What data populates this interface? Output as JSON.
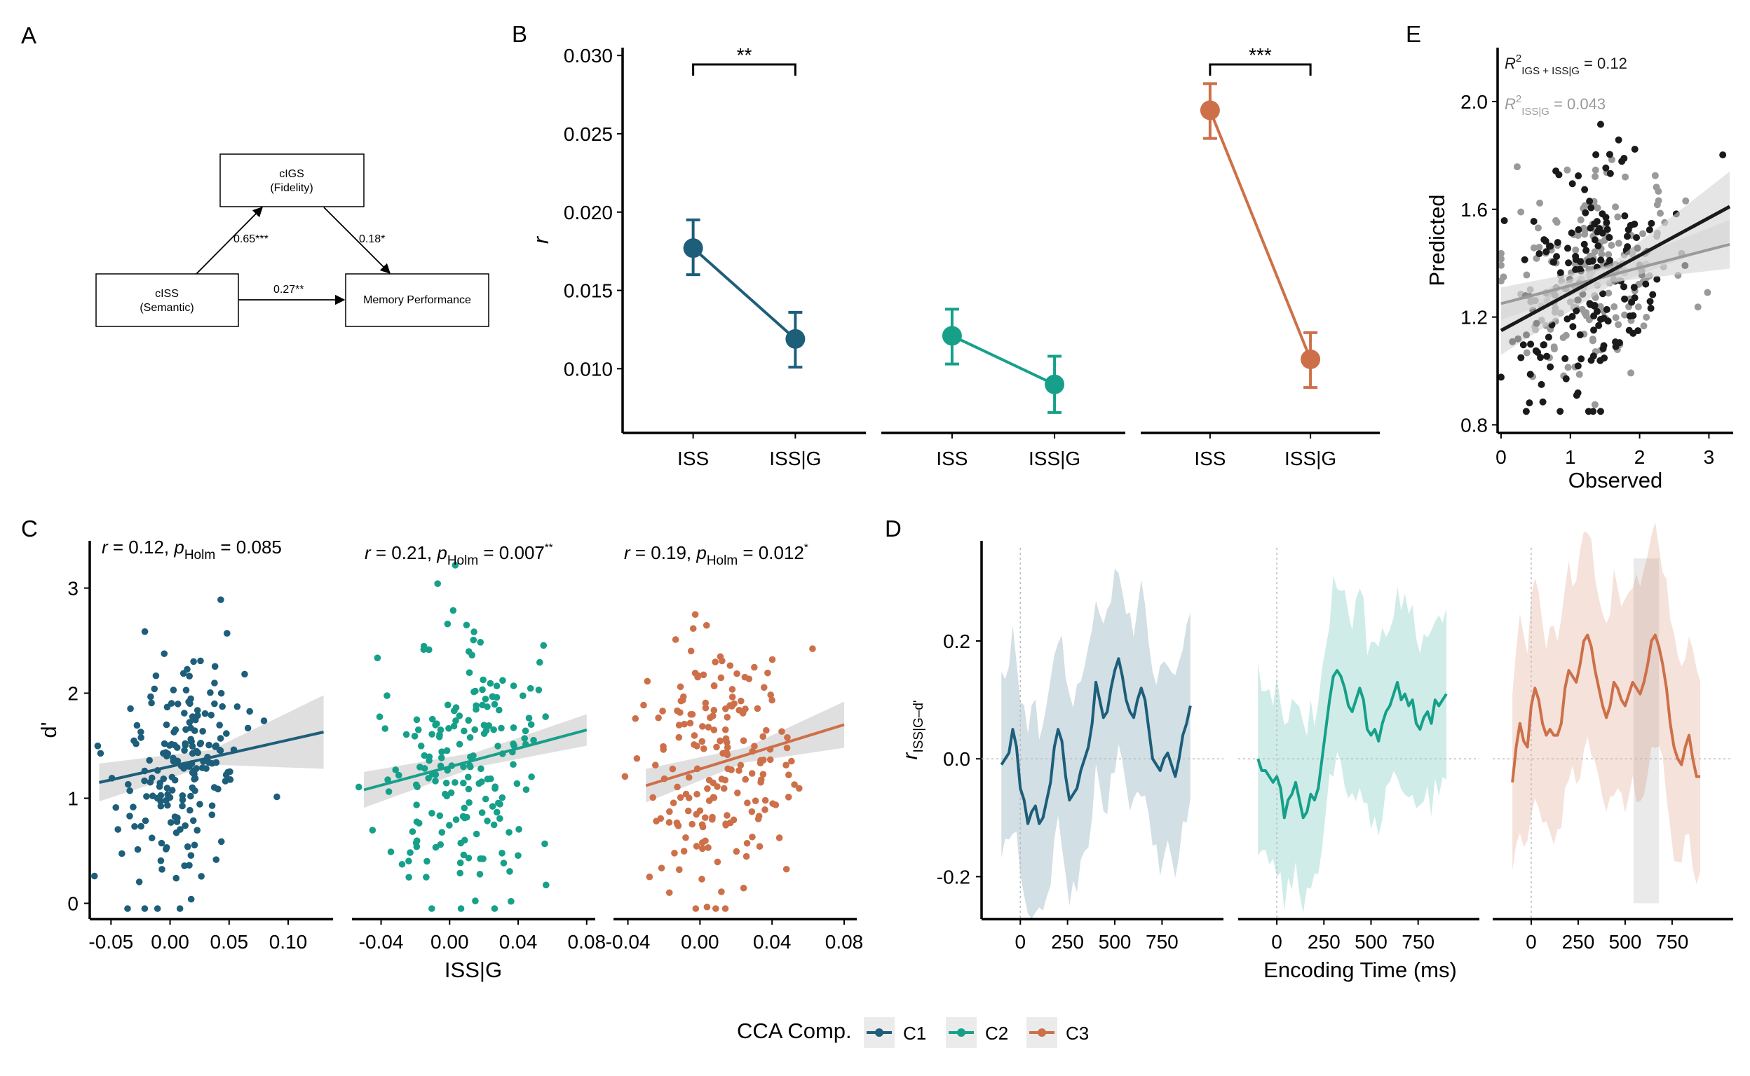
{
  "colors": {
    "C1": "#1d5e7a",
    "C2": "#16a08a",
    "C3": "#cd7049",
    "black": "#1a1a1a",
    "gray": "#9a9a9a",
    "band": "#d4d4d4"
  },
  "panelA": {
    "label": "A",
    "nodes": {
      "cigs": {
        "line1": "cIGS",
        "line2": "(Fidelity)"
      },
      "ciss": {
        "line1": "cISS",
        "line2": "(Semantic)"
      },
      "mem": {
        "line1": "Memory Performance"
      }
    },
    "paths": {
      "a": "0.65***",
      "b": "0.18*",
      "c": "0.27**"
    }
  },
  "chart_data": [
    {
      "id": "B",
      "label": "B",
      "type": "line",
      "ylabel": "r",
      "ylim": [
        0.0059,
        0.0305
      ],
      "yticks": [
        0.01,
        0.015,
        0.02,
        0.025,
        0.03
      ],
      "ytick_labels": [
        "0.010",
        "0.015",
        "0.020",
        "0.025",
        "0.030"
      ],
      "categories": [
        "ISS",
        "ISS|G"
      ],
      "facets": [
        {
          "series": "C1",
          "values": [
            0.0177,
            0.0119
          ],
          "lower": [
            0.016,
            0.0101
          ],
          "upper": [
            0.0195,
            0.0136
          ],
          "bracket": "**"
        },
        {
          "series": "C2",
          "values": [
            0.0121,
            0.009
          ],
          "lower": [
            0.0103,
            0.0072
          ],
          "upper": [
            0.0138,
            0.0108
          ],
          "bracket": ""
        },
        {
          "series": "C3",
          "values": [
            0.0265,
            0.0106
          ],
          "lower": [
            0.0247,
            0.0088
          ],
          "upper": [
            0.0282,
            0.0123
          ],
          "bracket": "***"
        }
      ]
    },
    {
      "id": "E",
      "label": "E",
      "type": "scatter",
      "xlabel": "Observed",
      "ylabel": "Predicted",
      "xlim": [
        -0.05,
        3.35
      ],
      "ylim": [
        0.77,
        2.2
      ],
      "xticks": [
        0,
        1,
        2,
        3
      ],
      "xtick_labels": [
        "0",
        "1",
        "2",
        "3"
      ],
      "yticks": [
        0.8,
        1.2,
        1.6,
        2.0
      ],
      "ytick_labels": [
        "0.8",
        "1.2",
        "1.6",
        "2.0"
      ],
      "annotations": [
        {
          "text": "R",
          "sup": "2",
          "sub": "IGS + ISS|G",
          "value": " = 0.12",
          "series": "black"
        },
        {
          "text": "R",
          "sup": "2",
          "sub": "ISS|G",
          "value": " = 0.043",
          "series": "gray"
        }
      ],
      "fits": [
        {
          "series": "black",
          "x": [
            0,
            3.3
          ],
          "y": [
            1.15,
            1.61
          ],
          "band_lo": [
            [
              0,
              1.06
            ],
            [
              1.6,
              1.32
            ],
            [
              3.3,
              1.48
            ]
          ],
          "band_hi": [
            [
              0,
              1.24
            ],
            [
              1.6,
              1.4
            ],
            [
              3.3,
              1.74
            ]
          ]
        },
        {
          "series": "gray",
          "x": [
            0,
            3.3
          ],
          "y": [
            1.25,
            1.47
          ],
          "band_lo": [
            [
              0,
              1.19
            ],
            [
              1.6,
              1.33
            ],
            [
              3.3,
              1.38
            ]
          ],
          "band_hi": [
            [
              0,
              1.31
            ],
            [
              1.6,
              1.39
            ],
            [
              3.3,
              1.56
            ]
          ]
        }
      ],
      "points_summary": {
        "n_per_series": 180,
        "x_mean": 1.3,
        "x_sd": 0.6,
        "y_mean": 1.36
      }
    },
    {
      "id": "C",
      "label": "C",
      "type": "scatter",
      "ylabel": "d'",
      "xlabel": "ISS|G",
      "ylim": [
        -0.15,
        3.45
      ],
      "yticks": [
        0,
        1,
        2,
        3
      ],
      "ytick_labels": [
        "0",
        "1",
        "2",
        "3"
      ],
      "facets": [
        {
          "series": "C1",
          "xlim": [
            -0.068,
            0.138
          ],
          "xticks": [
            -0.05,
            0.0,
            0.05,
            0.1
          ],
          "xtick_labels": [
            "-0.05",
            "0.00",
            "0.05",
            "0.10"
          ],
          "stat": {
            "r": "r",
            "rval": " = 0.12, ",
            "p": "p",
            "psub": "Holm",
            "pval": " = 0.085",
            "star": ""
          },
          "fit": {
            "x": [
              -0.06,
              0.13
            ],
            "y": [
              1.15,
              1.63
            ]
          },
          "band_halfwidth": [
            0.18,
            0.07,
            0.35
          ],
          "points_summary": {
            "n": 190,
            "x_mean": 0.01,
            "x_sd": 0.025,
            "y_mean": 1.3,
            "y_sd": 0.6
          }
        },
        {
          "series": "C2",
          "xlim": [
            -0.057,
            0.085
          ],
          "xticks": [
            -0.04,
            0.0,
            0.04,
            0.08
          ],
          "xtick_labels": [
            "-0.04",
            "0.00",
            "0.04",
            "0.08"
          ],
          "stat": {
            "r": "r",
            "rval": " = 0.21, ",
            "p": "p",
            "psub": "Holm",
            "pval": " = 0.007",
            "star": "**"
          },
          "fit": {
            "x": [
              -0.05,
              0.08
            ],
            "y": [
              1.08,
              1.65
            ]
          },
          "band_halfwidth": [
            0.17,
            0.07,
            0.15
          ],
          "points_summary": {
            "n": 190,
            "x_mean": 0.01,
            "x_sd": 0.022,
            "y_mean": 1.3,
            "y_sd": 0.6
          }
        },
        {
          "series": "C3",
          "xlim": [
            -0.048,
            0.087
          ],
          "xticks": [
            -0.04,
            0.0,
            0.04,
            0.08
          ],
          "xtick_labels": [
            "-0.04",
            "0.00",
            "0.04",
            "0.08"
          ],
          "stat": {
            "r": "r",
            "rval": " = 0.19, ",
            "p": "p",
            "psub": "Holm",
            "pval": " = 0.012",
            "star": "*"
          },
          "fit": {
            "x": [
              -0.03,
              0.08
            ],
            "y": [
              1.12,
              1.7
            ]
          },
          "band_halfwidth": [
            0.16,
            0.07,
            0.22
          ],
          "points_summary": {
            "n": 190,
            "x_mean": 0.01,
            "x_sd": 0.02,
            "y_mean": 1.3,
            "y_sd": 0.6
          }
        }
      ]
    },
    {
      "id": "D",
      "label": "D",
      "type": "line",
      "xlabel": "Encoding Time (ms)",
      "ylabel": "r",
      "ylabel_sub": "ISS|G–d'",
      "xlim": [
        -205,
        1075
      ],
      "ylim": [
        -0.272,
        0.37
      ],
      "xticks": [
        0,
        250,
        500,
        750
      ],
      "xtick_labels": [
        "0",
        "250",
        "500",
        "750"
      ],
      "yticks": [
        -0.2,
        0.0,
        0.2
      ],
      "ytick_labels": [
        "-0.2",
        "0.0",
        "0.2"
      ],
      "facets": [
        {
          "series": "C1",
          "t": [
            -100,
            -80,
            -60,
            -40,
            -20,
            0,
            20,
            40,
            60,
            80,
            100,
            120,
            140,
            160,
            180,
            200,
            220,
            240,
            260,
            280,
            300,
            320,
            340,
            360,
            380,
            400,
            420,
            440,
            460,
            480,
            500,
            520,
            540,
            560,
            580,
            600,
            620,
            640,
            660,
            680,
            700,
            720,
            740,
            760,
            780,
            800,
            820,
            840,
            860,
            880,
            900
          ],
          "r": [
            -0.01,
            0.0,
            0.01,
            0.05,
            0.02,
            -0.05,
            -0.07,
            -0.11,
            -0.09,
            -0.08,
            -0.11,
            -0.1,
            -0.07,
            -0.04,
            0.02,
            0.05,
            0.03,
            -0.03,
            -0.07,
            -0.06,
            -0.05,
            -0.02,
            0.0,
            0.02,
            0.06,
            0.13,
            0.1,
            0.07,
            0.08,
            0.12,
            0.15,
            0.17,
            0.14,
            0.1,
            0.08,
            0.07,
            0.1,
            0.12,
            0.1,
            0.05,
            0.0,
            -0.01,
            -0.02,
            0.0,
            0.01,
            -0.01,
            -0.03,
            0.0,
            0.04,
            0.06,
            0.09
          ],
          "band": 0.16
        },
        {
          "series": "C2",
          "t": [
            -100,
            -80,
            -60,
            -40,
            -20,
            0,
            20,
            40,
            60,
            80,
            100,
            120,
            140,
            160,
            180,
            200,
            220,
            240,
            260,
            280,
            300,
            320,
            340,
            360,
            380,
            400,
            420,
            440,
            460,
            480,
            500,
            520,
            540,
            560,
            580,
            600,
            620,
            640,
            660,
            680,
            700,
            720,
            740,
            760,
            780,
            800,
            820,
            840,
            860,
            880,
            900
          ],
          "r": [
            0.0,
            -0.02,
            -0.02,
            -0.03,
            -0.04,
            -0.03,
            -0.05,
            -0.1,
            -0.07,
            -0.06,
            -0.04,
            -0.07,
            -0.1,
            -0.09,
            -0.06,
            -0.07,
            -0.05,
            0.0,
            0.05,
            0.1,
            0.14,
            0.15,
            0.14,
            0.12,
            0.09,
            0.08,
            0.1,
            0.12,
            0.1,
            0.05,
            0.04,
            0.05,
            0.03,
            0.06,
            0.08,
            0.09,
            0.11,
            0.13,
            0.1,
            0.11,
            0.09,
            0.1,
            0.06,
            0.05,
            0.07,
            0.08,
            0.06,
            0.1,
            0.09,
            0.1,
            0.11
          ],
          "band": 0.15
        },
        {
          "series": "C3",
          "t": [
            -100,
            -80,
            -60,
            -40,
            -20,
            0,
            20,
            40,
            60,
            80,
            100,
            120,
            140,
            160,
            180,
            200,
            220,
            240,
            260,
            280,
            300,
            320,
            340,
            360,
            380,
            400,
            420,
            440,
            460,
            480,
            500,
            520,
            540,
            560,
            580,
            600,
            620,
            640,
            660,
            680,
            700,
            720,
            740,
            760,
            780,
            800,
            820,
            840,
            860,
            880,
            900
          ],
          "r": [
            -0.04,
            0.02,
            0.06,
            0.03,
            0.02,
            0.09,
            0.12,
            0.1,
            0.06,
            0.04,
            0.05,
            0.04,
            0.04,
            0.06,
            0.12,
            0.15,
            0.14,
            0.13,
            0.16,
            0.2,
            0.21,
            0.19,
            0.15,
            0.12,
            0.09,
            0.07,
            0.09,
            0.13,
            0.12,
            0.1,
            0.09,
            0.11,
            0.13,
            0.12,
            0.11,
            0.13,
            0.16,
            0.2,
            0.21,
            0.19,
            0.16,
            0.12,
            0.06,
            0.02,
            0.0,
            -0.01,
            0.02,
            0.04,
            0.0,
            -0.03,
            -0.03
          ],
          "band": 0.17,
          "highlight": [
            545,
            680
          ]
        }
      ]
    }
  ],
  "panelC": {
    "label": "C"
  },
  "panelD": {
    "label": "D"
  },
  "legend": {
    "title": "CCA Comp.",
    "items": [
      {
        "key": "C1",
        "label": "C1"
      },
      {
        "key": "C2",
        "label": "C2"
      },
      {
        "key": "C3",
        "label": "C3"
      }
    ]
  }
}
